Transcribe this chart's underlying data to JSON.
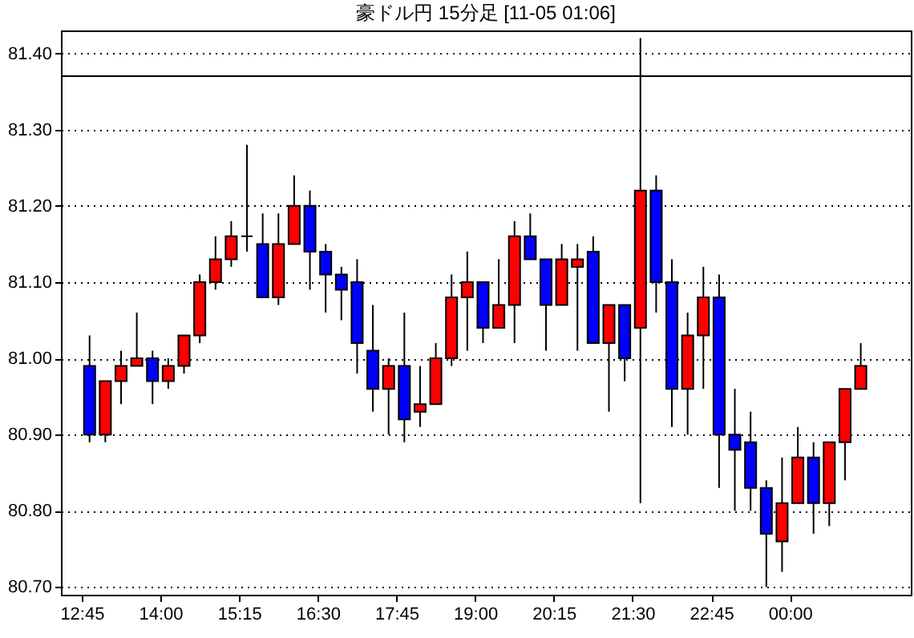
{
  "chart_data": {
    "type": "candlestick",
    "title": "豪ドル円 15分足 [11-05 01:06]",
    "x": [
      12.875,
      13.125,
      13.375,
      13.625,
      13.875,
      14.125,
      14.375,
      14.625,
      14.875,
      15.125,
      15.375,
      15.625,
      15.875,
      16.125,
      16.375,
      16.625,
      16.875,
      17.125,
      17.375,
      17.625,
      17.875,
      18.125,
      18.375,
      18.625,
      18.875,
      19.125,
      19.375,
      19.625,
      19.875,
      20.125,
      20.375,
      20.625,
      20.875,
      21.125,
      21.375,
      21.625,
      21.875,
      22.125,
      22.375,
      22.625,
      22.875,
      23.125,
      23.375,
      23.625,
      23.875,
      24.125,
      24.375,
      24.625,
      24.875,
      25.125
    ],
    "ohlc": [
      [
        80.99,
        81.03,
        80.89,
        80.9
      ],
      [
        80.9,
        80.97,
        80.89,
        80.97
      ],
      [
        80.97,
        81.01,
        80.94,
        80.99
      ],
      [
        80.99,
        81.06,
        80.99,
        81.0
      ],
      [
        81.0,
        81.01,
        80.94,
        80.97
      ],
      [
        80.97,
        81.0,
        80.96,
        80.99
      ],
      [
        80.99,
        81.03,
        80.98,
        81.03
      ],
      [
        81.03,
        81.11,
        81.02,
        81.1
      ],
      [
        81.1,
        81.16,
        81.09,
        81.13
      ],
      [
        81.13,
        81.18,
        81.12,
        81.16
      ],
      [
        81.16,
        81.28,
        81.14,
        81.16
      ],
      [
        81.15,
        81.19,
        81.08,
        81.08
      ],
      [
        81.08,
        81.19,
        81.07,
        81.15
      ],
      [
        81.15,
        81.24,
        81.15,
        81.2
      ],
      [
        81.2,
        81.22,
        81.09,
        81.14
      ],
      [
        81.14,
        81.15,
        81.06,
        81.11
      ],
      [
        81.11,
        81.12,
        81.05,
        81.09
      ],
      [
        81.1,
        81.13,
        80.98,
        81.02
      ],
      [
        81.01,
        81.07,
        80.93,
        80.96
      ],
      [
        80.96,
        81.0,
        80.9,
        80.99
      ],
      [
        80.99,
        81.06,
        80.89,
        80.92
      ],
      [
        80.93,
        80.99,
        80.91,
        80.94
      ],
      [
        80.94,
        81.02,
        80.94,
        81.0
      ],
      [
        81.0,
        81.11,
        80.99,
        81.08
      ],
      [
        81.08,
        81.14,
        81.01,
        81.1
      ],
      [
        81.1,
        81.1,
        81.02,
        81.04
      ],
      [
        81.04,
        81.13,
        81.04,
        81.07
      ],
      [
        81.07,
        81.18,
        81.02,
        81.16
      ],
      [
        81.16,
        81.19,
        81.13,
        81.13
      ],
      [
        81.13,
        81.13,
        81.01,
        81.07
      ],
      [
        81.07,
        81.15,
        81.07,
        81.13
      ],
      [
        81.12,
        81.15,
        81.01,
        81.13
      ],
      [
        81.14,
        81.16,
        81.02,
        81.02
      ],
      [
        81.02,
        81.07,
        80.93,
        81.07
      ],
      [
        81.07,
        81.07,
        80.97,
        81.0
      ],
      [
        81.04,
        81.42,
        80.81,
        81.22
      ],
      [
        81.22,
        81.24,
        81.06,
        81.1
      ],
      [
        81.1,
        81.13,
        80.91,
        80.96
      ],
      [
        80.96,
        81.06,
        80.9,
        81.03
      ],
      [
        81.03,
        81.12,
        80.96,
        81.08
      ],
      [
        81.08,
        81.11,
        80.83,
        80.9
      ],
      [
        80.9,
        80.96,
        80.8,
        80.88
      ],
      [
        80.89,
        80.93,
        80.8,
        80.83
      ],
      [
        80.83,
        80.84,
        80.7,
        80.77
      ],
      [
        80.76,
        80.87,
        80.72,
        80.81
      ],
      [
        80.81,
        80.91,
        80.81,
        80.87
      ],
      [
        80.87,
        80.89,
        80.77,
        80.81
      ],
      [
        80.81,
        80.89,
        80.78,
        80.89
      ],
      [
        80.89,
        80.96,
        80.84,
        80.96
      ],
      [
        80.96,
        81.02,
        80.96,
        80.99
      ]
    ],
    "colors": [
      "#0000ff",
      "#ff0000",
      "#ff0000",
      "#ff0000",
      "#0000ff",
      "#ff0000",
      "#ff0000",
      "#ff0000",
      "#ff0000",
      "#ff0000",
      "#000000",
      "#0000ff",
      "#ff0000",
      "#ff0000",
      "#0000ff",
      "#0000ff",
      "#0000ff",
      "#0000ff",
      "#0000ff",
      "#ff0000",
      "#0000ff",
      "#ff0000",
      "#ff0000",
      "#ff0000",
      "#ff0000",
      "#0000ff",
      "#ff0000",
      "#ff0000",
      "#0000ff",
      "#0000ff",
      "#ff0000",
      "#ff0000",
      "#0000ff",
      "#ff0000",
      "#0000ff",
      "#ff0000",
      "#0000ff",
      "#0000ff",
      "#ff0000",
      "#ff0000",
      "#0000ff",
      "#0000ff",
      "#0000ff",
      "#0000ff",
      "#ff0000",
      "#ff0000",
      "#0000ff",
      "#ff0000",
      "#ff0000",
      "#ff0000"
    ],
    "xlim": [
      12.42,
      25.92
    ],
    "xticks": [
      {
        "value": 12.75,
        "label": "12:45"
      },
      {
        "value": 14,
        "label": "14:00"
      },
      {
        "value": 15.25,
        "label": "15:15"
      },
      {
        "value": 16.5,
        "label": "16:30"
      },
      {
        "value": 17.75,
        "label": "17:45"
      },
      {
        "value": 19,
        "label": "19:00"
      },
      {
        "value": 20.25,
        "label": "20:15"
      },
      {
        "value": 21.5,
        "label": "21:30"
      },
      {
        "value": 22.75,
        "label": "22:45"
      },
      {
        "value": 24,
        "label": "00:00"
      }
    ],
    "ylim": [
      80.69,
      81.43
    ],
    "yticks": [
      {
        "value": 80.7,
        "label": "80.70"
      },
      {
        "value": 80.8,
        "label": "80.80"
      },
      {
        "value": 80.9,
        "label": "80.90"
      },
      {
        "value": 81,
        "label": "81.00"
      },
      {
        "value": 81.1,
        "label": "81.10"
      },
      {
        "value": 81.2,
        "label": "81.20"
      },
      {
        "value": 81.3,
        "label": "81.30"
      },
      {
        "value": 81.4,
        "label": "81.40"
      }
    ],
    "grid": "y",
    "ref_lines": [
      {
        "axis": "y",
        "value": 81.37,
        "color": "#000000"
      }
    ]
  }
}
